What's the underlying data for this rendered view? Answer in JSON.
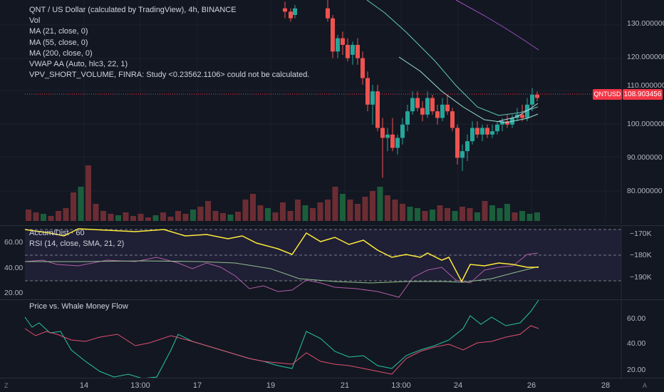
{
  "main": {
    "legend": [
      "QNT / US Dollar (calculated by TradingView), 4h, BINANCE",
      "Vol",
      "MA (21, close, 0)",
      "MA (55, close, 0)",
      "MA (200, close, 0)",
      "VWAP AA (Auto, hlc3, 22, 1)",
      "VPV_SHORT_VOLUME, FINRA: Study <0.23562.1106> could not be calculated."
    ],
    "price_axis": [
      "130.000000",
      "120.000000",
      "110.000000",
      "100.000000",
      "90.000000",
      "80.000000"
    ],
    "last_price": "108.903456",
    "ticker_tag": "QNTUSD"
  },
  "rsi_pane": {
    "legend": [
      "Accum/Dist · 60",
      "RSI (14, close, SMA, 21, 2)"
    ],
    "left_axis": [
      "60.00",
      "40.00",
      "20.00"
    ],
    "right_axis": [
      "−170K",
      "−180K",
      "−190K"
    ]
  },
  "whale_pane": {
    "legend": "Price vs. Whale Money Flow",
    "right_axis": [
      "60.00",
      "40.00",
      "20.00"
    ]
  },
  "time_axis": {
    "labels": [
      "14",
      "13:00",
      "17",
      "19",
      "21",
      "13:00",
      "24",
      "26",
      "28"
    ]
  },
  "corner": {
    "left": "Z",
    "right": "A"
  },
  "colors": {
    "background": "#131722",
    "up": "#26a69a",
    "down": "#ef5350",
    "ma21": "#9be2d6",
    "ma55": "#5fc9bd",
    "ma200": "#9c4ec0",
    "adline": "#ffeb3b",
    "rsi": "#b05ea6",
    "rsi_ma": "#8fbf8f",
    "whale_green": "#26c6a0",
    "whale_red": "#e04f70",
    "price_line": "#f23645"
  }
}
